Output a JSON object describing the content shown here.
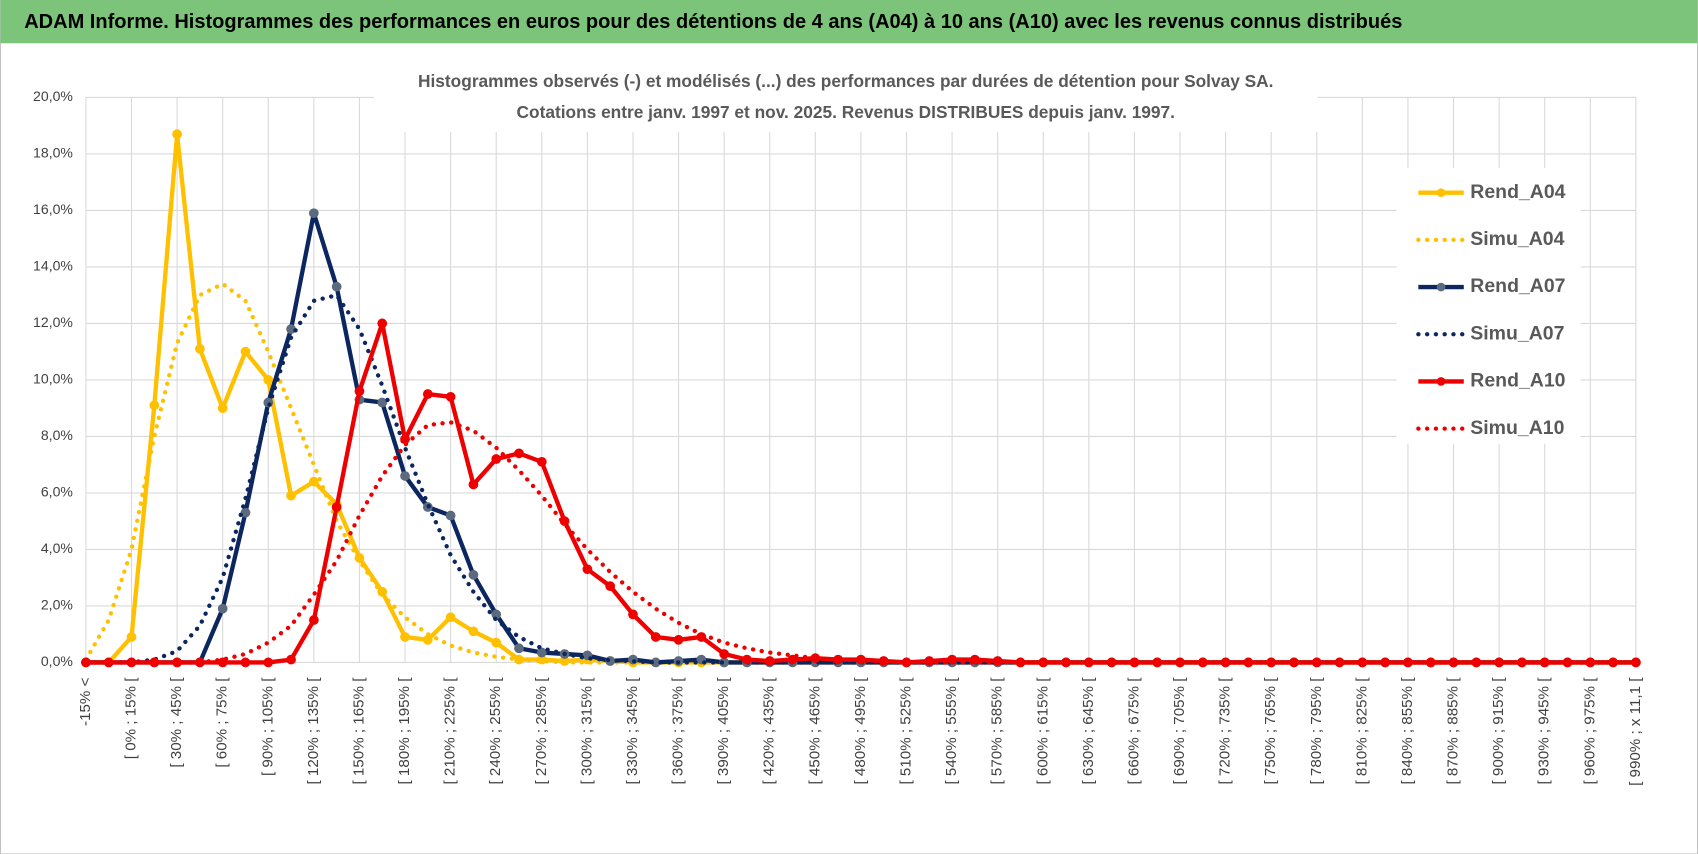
{
  "header": {
    "title": "ADAM Informe. Histogrammes des performances en euros pour des détentions de 4 ans (A04) à 10 ans (A10) avec les revenus connus distribués"
  },
  "chart_data": {
    "type": "line",
    "title": "Histogrammes observés (-) et modélisés (...)  des performances par durées de détention pour Solvay SA.",
    "subtitle": "Cotations entre janv. 1997 et nov. 2025. Revenus DISTRIBUES depuis janv. 1997.",
    "categories": [
      "-15% <",
      null,
      "[ 0% ; 15% [",
      null,
      "[ 30% ; 45% [",
      null,
      "[ 60% ; 75% [",
      null,
      "[ 90% ; 105% [",
      null,
      "[ 120% ; 135% [",
      null,
      "[ 150% ; 165% [",
      null,
      "[ 180% ; 195% [",
      null,
      "[ 210% ; 225% [",
      null,
      "[ 240% ; 255% [",
      null,
      "[ 270% ; 285% [",
      null,
      "[ 300% ; 315% [",
      null,
      "[ 330% ; 345% [",
      null,
      "[ 360% ; 375% [",
      null,
      "[ 390% ; 405% [",
      null,
      "[ 420% ; 435% [",
      null,
      "[ 450% ; 465% [",
      null,
      "[ 480% ; 495% [",
      null,
      "[ 510% ; 525% [",
      null,
      "[ 540% ; 555% [",
      null,
      "[ 570% ; 585% [",
      null,
      "[ 600% ; 615% [",
      null,
      "[ 630% ; 645% [",
      null,
      "[ 660% ; 675% [",
      null,
      "[ 690% ; 705% [",
      null,
      "[ 720% ; 735% [",
      null,
      "[ 750% ; 765% [",
      null,
      "[ 780% ; 795% [",
      null,
      "[ 810% ; 825% [",
      null,
      "[ 840% ; 855% [",
      null,
      "[ 870% ; 885% [",
      null,
      "[ 900% ; 915% [",
      null,
      "[ 930% ; 945% [",
      null,
      "[ 960% ; 975% [",
      null,
      "[ 990% ; x 11,1 ["
    ],
    "series": [
      {
        "name": "Rend_A04",
        "color": "#ffc000",
        "style": "solid",
        "markers": true,
        "values": [
          0,
          0,
          0.9,
          9.1,
          18.7,
          11.1,
          9,
          11,
          10,
          5.9,
          6.4,
          5.6,
          3.7,
          2.5,
          0.9,
          0.8,
          1.6,
          1.1,
          0.7,
          0.1,
          0.1,
          0.05,
          0.1,
          0.05,
          0,
          0,
          0,
          0,
          0,
          0,
          0,
          0,
          0,
          0,
          0,
          0,
          0,
          0,
          0,
          0,
          0,
          0,
          0,
          0,
          0,
          0,
          0,
          0,
          0,
          0,
          0,
          0,
          0,
          0,
          0,
          0,
          0,
          0,
          0,
          0,
          0,
          0,
          0,
          0,
          0,
          0,
          0,
          0,
          0
        ]
      },
      {
        "name": "Simu_A04",
        "color": "#ffc000",
        "style": "dotted",
        "markers": false,
        "values": [
          0.1,
          1.5,
          4,
          8,
          11.3,
          13,
          13.4,
          12.8,
          11,
          9,
          7,
          5,
          3.6,
          2.4,
          1.6,
          1,
          0.6,
          0.35,
          0.2,
          0.1,
          0.05,
          0,
          0,
          0,
          0,
          0,
          0,
          0,
          0,
          0,
          0,
          0,
          0,
          0,
          0,
          0,
          0,
          0,
          0,
          0,
          0,
          0,
          0,
          0,
          0,
          0,
          0,
          0,
          0,
          0,
          0,
          0,
          0,
          0,
          0,
          0,
          0,
          0,
          0,
          0,
          0,
          0,
          0,
          0,
          0,
          0,
          0,
          0,
          0
        ]
      },
      {
        "name": "Rend_A07",
        "color": "#0c2660",
        "marker_color": "#5b6a7e",
        "style": "solid",
        "markers": true,
        "values": [
          0,
          0,
          0,
          0,
          0,
          0,
          1.9,
          5.3,
          9.2,
          11.8,
          15.9,
          13.3,
          9.3,
          9.2,
          6.6,
          5.5,
          5.2,
          3.1,
          1.7,
          0.5,
          0.35,
          0.3,
          0.25,
          0.05,
          0.1,
          0,
          0.05,
          0.1,
          0,
          0,
          0,
          0,
          0,
          0,
          0,
          0,
          0,
          0,
          0,
          0,
          0,
          0,
          0,
          0,
          0,
          0,
          0,
          0,
          0,
          0,
          0,
          0,
          0,
          0,
          0,
          0,
          0,
          0,
          0,
          0,
          0,
          0,
          0,
          0,
          0,
          0,
          0,
          0,
          0
        ]
      },
      {
        "name": "Simu_A07",
        "color": "#0c2660",
        "style": "dotted",
        "markers": false,
        "values": [
          0,
          0,
          0,
          0.1,
          0.4,
          1.3,
          3,
          5.8,
          9,
          11.5,
          12.8,
          13,
          11.8,
          9.8,
          7.6,
          5.6,
          3.8,
          2.5,
          1.5,
          0.9,
          0.5,
          0.3,
          0.15,
          0.08,
          0.04,
          0,
          0,
          0,
          0,
          0,
          0,
          0,
          0,
          0,
          0,
          0,
          0,
          0,
          0,
          0,
          0,
          0,
          0,
          0,
          0,
          0,
          0,
          0,
          0,
          0,
          0,
          0,
          0,
          0,
          0,
          0,
          0,
          0,
          0,
          0,
          0,
          0,
          0,
          0,
          0,
          0,
          0,
          0,
          0
        ]
      },
      {
        "name": "Rend_A10",
        "color": "#ee0000",
        "style": "solid",
        "markers": true,
        "values": [
          0,
          0,
          0,
          0,
          0,
          0,
          0,
          0,
          0,
          0.1,
          1.5,
          5.5,
          9.6,
          12,
          7.9,
          9.5,
          9.4,
          6.3,
          7.2,
          7.4,
          7.1,
          5,
          3.3,
          2.7,
          1.7,
          0.9,
          0.8,
          0.9,
          0.3,
          0.1,
          0.05,
          0.1,
          0.15,
          0.1,
          0.1,
          0.05,
          0,
          0.05,
          0.1,
          0.1,
          0.05,
          0,
          0,
          0,
          0,
          0,
          0,
          0,
          0,
          0,
          0,
          0,
          0,
          0,
          0,
          0,
          0,
          0,
          0,
          0,
          0,
          0,
          0,
          0,
          0,
          0,
          0,
          0,
          0
        ]
      },
      {
        "name": "Simu_A10",
        "color": "#ee0000",
        "style": "dotted",
        "markers": false,
        "values": [
          0,
          0,
          0,
          0,
          0,
          0,
          0.1,
          0.3,
          0.7,
          1.3,
          2.4,
          3.6,
          5.2,
          6.6,
          7.7,
          8.4,
          8.5,
          8.2,
          7.6,
          6.8,
          5.9,
          4.9,
          4,
          3.2,
          2.5,
          1.9,
          1.4,
          1,
          0.7,
          0.5,
          0.35,
          0.25,
          0.15,
          0.1,
          0.07,
          0.04,
          0,
          0,
          0,
          0,
          0,
          0,
          0,
          0,
          0,
          0,
          0,
          0,
          0,
          0,
          0,
          0,
          0,
          0,
          0,
          0,
          0,
          0,
          0,
          0,
          0,
          0,
          0,
          0,
          0,
          0,
          0,
          0,
          0
        ]
      }
    ],
    "ylim": [
      0,
      20
    ],
    "yticks": [
      {
        "value": 0,
        "label": "0,0%"
      },
      {
        "value": 2,
        "label": "2,0%"
      },
      {
        "value": 4,
        "label": "4,0%"
      },
      {
        "value": 6,
        "label": "6,0%"
      },
      {
        "value": 8,
        "label": "8,0%"
      },
      {
        "value": 10,
        "label": "10,0%"
      },
      {
        "value": 12,
        "label": "12,0%"
      },
      {
        "value": 14,
        "label": "14,0%"
      },
      {
        "value": 16,
        "label": "16,0%"
      },
      {
        "value": 18,
        "label": "18,0%"
      },
      {
        "value": 20,
        "label": "20,0%"
      }
    ],
    "grid": true
  }
}
